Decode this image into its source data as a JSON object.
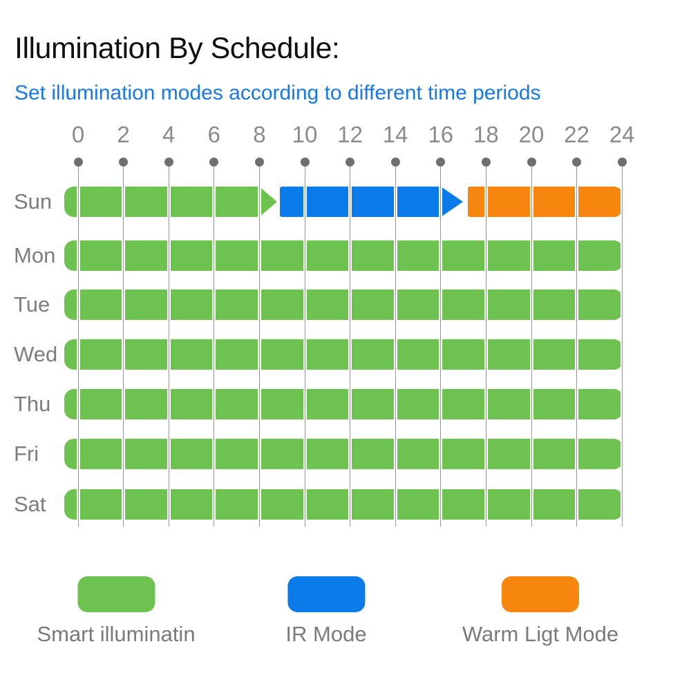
{
  "title": "Illumination By Schedule:",
  "subtitle": "Set illumination modes according to different time periods",
  "colors": {
    "title_text": "#101010",
    "subtitle_text": "#1878E4",
    "axis_text": "#8A8A8A",
    "day_text": "#7D7D7D",
    "legend_text": "#7A7A7A",
    "gridline": "#949494",
    "tick_dot": "#6F6F6F",
    "background": "#FFFFFF",
    "smart_green": "#6EC24F",
    "ir_blue": "#0B7BE9",
    "warm_orange": "#F6860D"
  },
  "chart_data": {
    "type": "bar",
    "subtype": "weekly-schedule-timeline",
    "title": "Illumination By Schedule:",
    "subtitle": "Set illumination modes according to different time periods",
    "x_axis": {
      "unit": "hour",
      "range": [
        0,
        24
      ],
      "ticks": [
        0,
        2,
        4,
        6,
        8,
        10,
        12,
        14,
        16,
        18,
        20,
        22,
        24
      ],
      "grid": true
    },
    "modes": {
      "smart": {
        "label": "Smart illuminatin",
        "color": "#6EC24F"
      },
      "ir": {
        "label": "IR Mode",
        "color": "#0B7BE9"
      },
      "warm": {
        "label": "Warm Ligt Mode",
        "color": "#F6860D"
      }
    },
    "rows": [
      {
        "day": "Sun",
        "segments": [
          {
            "mode": "smart",
            "start": 0,
            "end": 8,
            "arrow_tip": 8.8
          },
          {
            "mode": "ir",
            "start": 8.9,
            "end": 16,
            "arrow_tip": 17.0
          },
          {
            "mode": "warm",
            "start": 17.2,
            "end": 24
          }
        ]
      },
      {
        "day": "Mon",
        "segments": [
          {
            "mode": "smart",
            "start": 0,
            "end": 24
          }
        ]
      },
      {
        "day": "Tue",
        "segments": [
          {
            "mode": "smart",
            "start": 0,
            "end": 24
          }
        ]
      },
      {
        "day": "Wed",
        "segments": [
          {
            "mode": "smart",
            "start": 0,
            "end": 24
          }
        ]
      },
      {
        "day": "Thu",
        "segments": [
          {
            "mode": "smart",
            "start": 0,
            "end": 24
          }
        ]
      },
      {
        "day": "Fri",
        "segments": [
          {
            "mode": "smart",
            "start": 0,
            "end": 24
          }
        ]
      },
      {
        "day": "Sat",
        "segments": [
          {
            "mode": "smart",
            "start": 0,
            "end": 24
          }
        ]
      }
    ],
    "legend": [
      {
        "mode": "smart",
        "label": "Smart illuminatin"
      },
      {
        "mode": "ir",
        "label": "IR Mode"
      },
      {
        "mode": "warm",
        "label": "Warm Ligt Mode"
      }
    ],
    "legend_position": "bottom"
  }
}
